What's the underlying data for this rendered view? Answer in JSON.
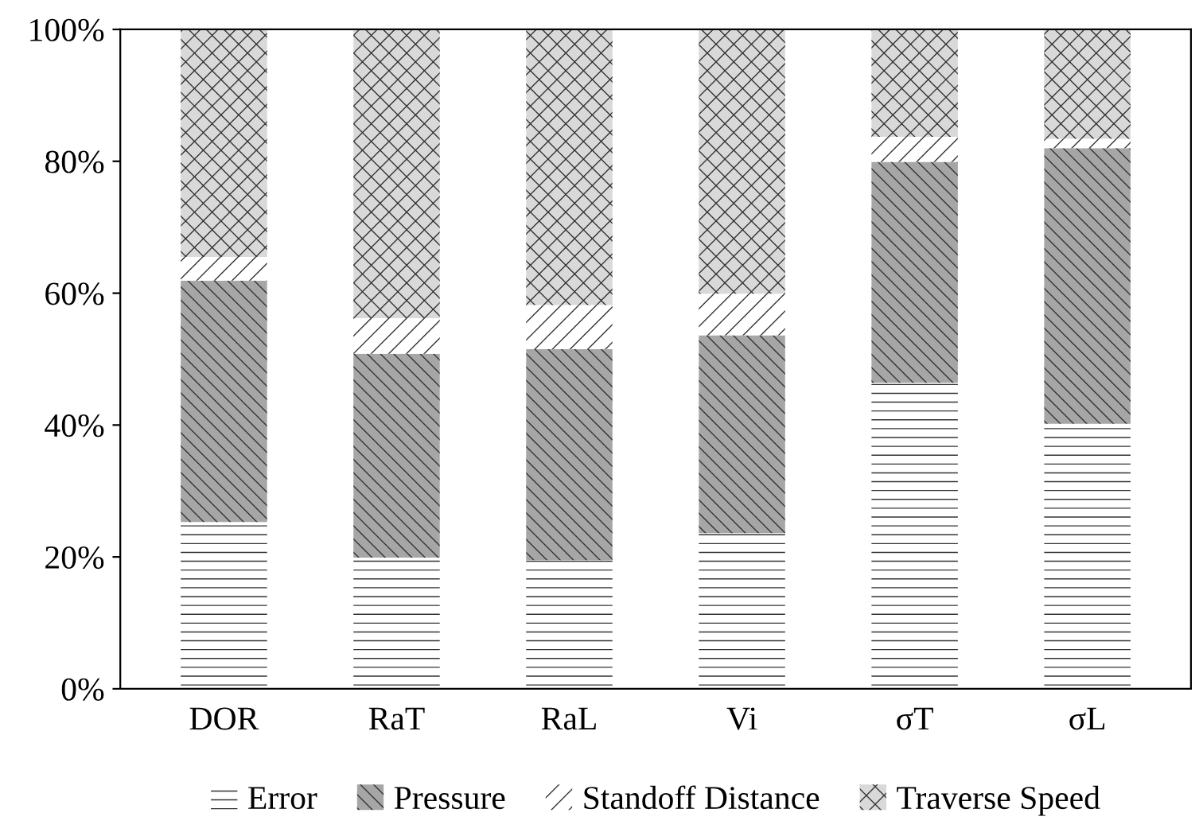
{
  "chart_data": {
    "type": "bar",
    "stacked": true,
    "categories": [
      "DOR",
      "RaT",
      "RaL",
      "Vi",
      "σT",
      "σL"
    ],
    "series": [
      {
        "name": "Error",
        "color": "#ffffff",
        "values": [
          25.3,
          19.9,
          19.5,
          23.6,
          46.4,
          40.2
        ]
      },
      {
        "name": "Pressure",
        "color": "#a6a6a6",
        "values": [
          36.6,
          30.9,
          32.0,
          30.0,
          33.5,
          41.8
        ]
      },
      {
        "name": "Standoff Distance",
        "color": "#ffffff",
        "values": [
          3.6,
          5.4,
          6.7,
          6.3,
          3.8,
          1.4
        ]
      },
      {
        "name": "Traverse Speed",
        "color": "#d9d9d9",
        "values": [
          34.5,
          43.8,
          41.8,
          40.1,
          16.3,
          16.6
        ]
      }
    ],
    "ylim": [
      0,
      100
    ],
    "yticks": [
      {
        "value": 0,
        "label": "0%"
      },
      {
        "value": 20,
        "label": "20%"
      },
      {
        "value": 40,
        "label": "40%"
      },
      {
        "value": 60,
        "label": "60%"
      },
      {
        "value": 80,
        "label": "80%"
      },
      {
        "value": 100,
        "label": "100%"
      }
    ],
    "grid": false,
    "legend": "bottom"
  }
}
